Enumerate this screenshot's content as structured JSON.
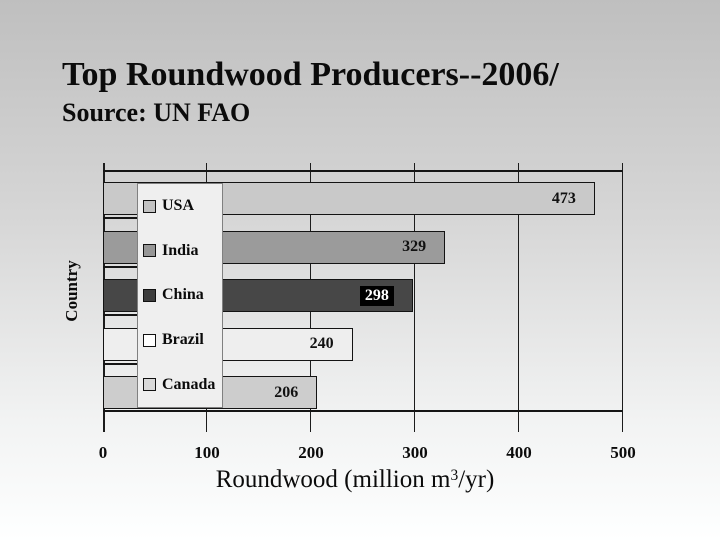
{
  "slide": {
    "title": "Top Roundwood Producers--2006/",
    "subtitle": "Source: UN FAO"
  },
  "chart_data": {
    "type": "bar",
    "orientation": "horizontal",
    "categories": [
      "USA",
      "India",
      "China",
      "Brazil",
      "Canada"
    ],
    "values": [
      473,
      329,
      298,
      240,
      206
    ],
    "bar_colors": [
      "#c9c9c9",
      "#9b9b9b",
      "#474747",
      "#eeeeee",
      "#cdcdcd"
    ],
    "legend_swatch_colors": [
      "#c2c2c2",
      "#969696",
      "#3d3d3d",
      "#ffffff",
      "#d8d8d8"
    ],
    "value_label_modes": [
      "plain",
      "plain",
      "inverse",
      "plain",
      "plain"
    ],
    "inverse_label_colors": {
      "bg": "#000000",
      "text": "#ffffff"
    },
    "ylabel": "Country",
    "xlabel_parts": {
      "prefix": "Roundwood (million m",
      "sup": "3",
      "suffix": "/yr)"
    },
    "xlim": [
      0,
      500
    ],
    "x_ticks": [
      0,
      100,
      200,
      300,
      400,
      500
    ],
    "grid": true,
    "legend_position": "overlay-left-inside-plot",
    "value_label_position": "inside-right-end"
  }
}
